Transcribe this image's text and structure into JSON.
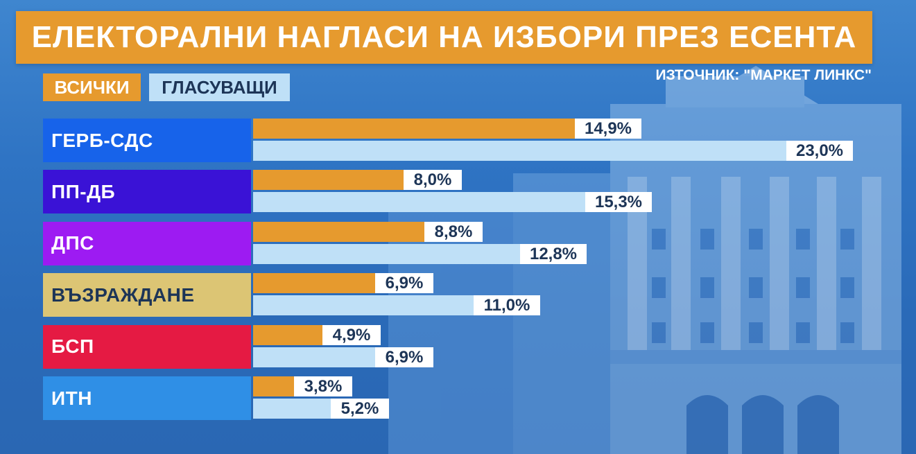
{
  "title": "ЕЛЕКТОРАЛНИ НАГЛАСИ НА ИЗБОРИ ПРЕЗ ЕСЕНТА",
  "source": "ИЗТОЧНИК: \"МАРКЕТ ЛИНКС\"",
  "legend": {
    "all": "ВСИЧКИ",
    "voters": "ГЛАСУВАЩИ"
  },
  "colors": {
    "all": "#e69a2e",
    "voters": "#bfe0f7",
    "background": "#2f74c4"
  },
  "chart_data": {
    "type": "bar",
    "title": "ЕЛЕКТОРАЛНИ НАГЛАСИ НА ИЗБОРИ ПРЕЗ ЕСЕНТА",
    "orientation": "horizontal",
    "categories": [
      "ГЕРБ-СДС",
      "ПП-ДБ",
      "ДПС",
      "ВЪЗРАЖДАНЕ",
      "БСП",
      "ИТН"
    ],
    "category_colors": [
      "#1763ea",
      "#3a12d6",
      "#9d1bf2",
      "#dcc574",
      "#e51a43",
      "#2f8fe6"
    ],
    "series": [
      {
        "name": "ВСИЧКИ",
        "values": [
          14.9,
          8.0,
          8.8,
          6.9,
          4.9,
          3.8
        ],
        "labels": [
          "14,9%",
          "8,0%",
          "8,8%",
          "6,9%",
          "4,9%",
          "3,8%"
        ]
      },
      {
        "name": "ГЛАСУВАЩИ",
        "values": [
          23.0,
          15.3,
          12.8,
          11.0,
          6.9,
          5.2
        ],
        "labels": [
          "23,0%",
          "15,3%",
          "12,8%",
          "11,0%",
          "6,9%",
          "5,2%"
        ]
      }
    ],
    "unit": "%",
    "legend_position": "top-left",
    "grid": false,
    "xlim": [
      0,
      23.0
    ]
  }
}
